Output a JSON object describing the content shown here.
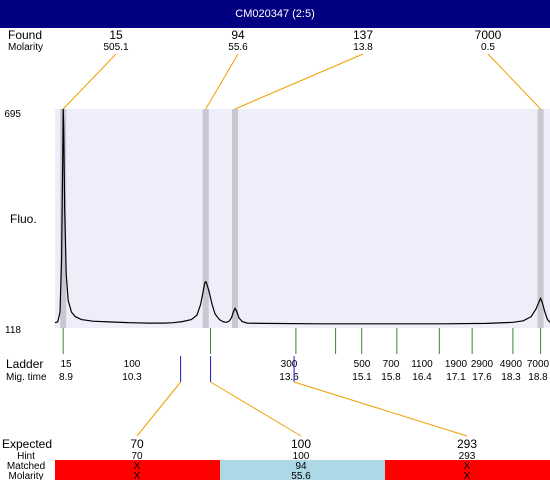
{
  "window": {
    "title": "CM020347 (2:5)",
    "title_bg": "#000080",
    "title_fg": "#ffffff"
  },
  "labels": {
    "found": "Found",
    "molarity": "Molarity",
    "fluo": "Fluo.",
    "ladder": "Ladder",
    "mig_time": "Mig. time",
    "expected": "Expected",
    "hint": "Hint",
    "matched": "Matched",
    "molarity_bottom": "Molarity"
  },
  "colors": {
    "plot_bg": "#eeeefa",
    "band": "#c8c8d0",
    "connector": "#f0a000",
    "ladder_tick": "#2e8b2e",
    "marker_blue": "#1a1acc",
    "mismatch": "#ff0000",
    "match": "#add8e6"
  },
  "chart_data": {
    "type": "line",
    "ylabel": "Fluo.",
    "ylim": [
      118,
      695
    ],
    "x_scale": "log",
    "xlim": [
      13.5,
      7900
    ],
    "found": [
      {
        "size": "15",
        "molarity": "505.1",
        "x": 15
      },
      {
        "size": "94",
        "molarity": "55.6",
        "x": 94
      },
      {
        "size": "137",
        "molarity": "13.8",
        "x": 137
      },
      {
        "size": "7000",
        "molarity": "0.5",
        "x": 7000
      }
    ],
    "ladder": [
      {
        "size": "15",
        "mig_time": "8.9",
        "x": 15
      },
      {
        "size": "100",
        "mig_time": "10.3",
        "x": 100
      },
      {
        "size": "300",
        "mig_time": "13.6",
        "x": 300
      },
      {
        "size": "500",
        "mig_time": "15.1",
        "x": 500
      },
      {
        "size": "700",
        "mig_time": "15.8",
        "x": 700
      },
      {
        "size": "1100",
        "mig_time": "16.4",
        "x": 1100
      },
      {
        "size": "1900",
        "mig_time": "17.1",
        "x": 1900
      },
      {
        "size": "2900",
        "mig_time": "17.6",
        "x": 2900
      },
      {
        "size": "4900",
        "mig_time": "18.3",
        "x": 4900
      },
      {
        "size": "7000",
        "mig_time": "18.8",
        "x": 7000
      }
    ],
    "expected": [
      {
        "size": "70",
        "hint": "70",
        "matched": "X",
        "molarity": "X",
        "ladder_x": 68,
        "status": "mismatch"
      },
      {
        "size": "100",
        "hint": "100",
        "matched": "94",
        "molarity": "55.6",
        "ladder_x": 100,
        "status": "match"
      },
      {
        "size": "293",
        "hint": "293",
        "matched": "X",
        "molarity": "X",
        "ladder_x": 293,
        "status": "mismatch"
      }
    ],
    "baseline": 130,
    "trace": [
      [
        13.5,
        132
      ],
      [
        14.0,
        134
      ],
      [
        14.4,
        160
      ],
      [
        14.7,
        300
      ],
      [
        14.9,
        560
      ],
      [
        15.0,
        695
      ],
      [
        15.1,
        650
      ],
      [
        15.3,
        430
      ],
      [
        15.6,
        260
      ],
      [
        16.0,
        190
      ],
      [
        16.7,
        160
      ],
      [
        17.5,
        148
      ],
      [
        19,
        140
      ],
      [
        22,
        136
      ],
      [
        27,
        134
      ],
      [
        35,
        132
      ],
      [
        45,
        131
      ],
      [
        55,
        131
      ],
      [
        62,
        132
      ],
      [
        70,
        135
      ],
      [
        78,
        140
      ],
      [
        84,
        152
      ],
      [
        88,
        180
      ],
      [
        91,
        215
      ],
      [
        93,
        238
      ],
      [
        94,
        240
      ],
      [
        95,
        236
      ],
      [
        98,
        215
      ],
      [
        102,
        180
      ],
      [
        106,
        155
      ],
      [
        112,
        140
      ],
      [
        118,
        134
      ],
      [
        123,
        133
      ],
      [
        127,
        136
      ],
      [
        131,
        145
      ],
      [
        134,
        160
      ],
      [
        137,
        170
      ],
      [
        140,
        162
      ],
      [
        144,
        145
      ],
      [
        150,
        135
      ],
      [
        160,
        131
      ],
      [
        200,
        130
      ],
      [
        400,
        129
      ],
      [
        1000,
        129
      ],
      [
        2000,
        129
      ],
      [
        3500,
        130
      ],
      [
        4900,
        133
      ],
      [
        5600,
        137
      ],
      [
        6200,
        148
      ],
      [
        6600,
        168
      ],
      [
        6900,
        190
      ],
      [
        7000,
        196
      ],
      [
        7150,
        185
      ],
      [
        7400,
        160
      ],
      [
        7650,
        140
      ],
      [
        7900,
        133
      ]
    ]
  }
}
